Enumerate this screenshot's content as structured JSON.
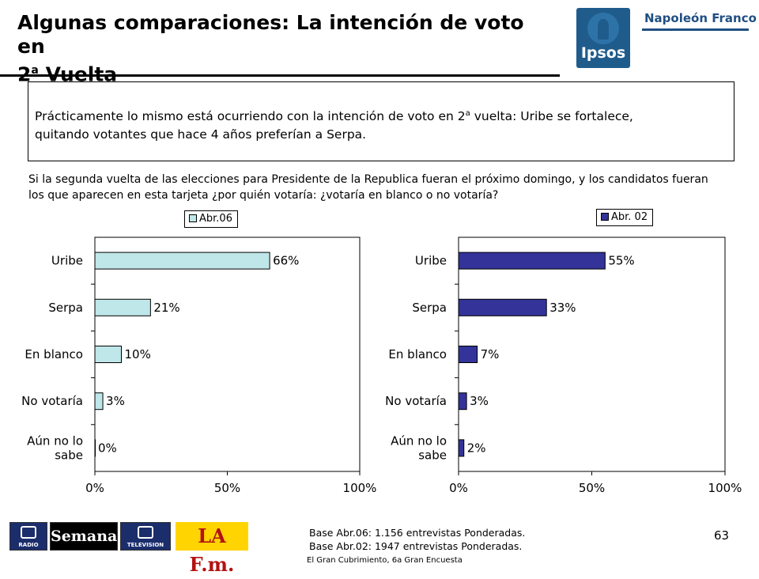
{
  "title": {
    "line1": "Algunas comparaciones: La intención de voto en",
    "line2_prefix": "2",
    "line2_sup": "a",
    "line2_suffix": " Vuelta"
  },
  "logos": {
    "ipsos": "Ipsos",
    "napoleon": "Napoleón Franco",
    "rcn_radio": "RADIO",
    "semana": "Semana",
    "rcn_tv": "TELEVISION",
    "lafm": "LA F.m."
  },
  "callout": {
    "line1_a": "Prácticamente lo mismo está ocurriendo con la intención de voto en 2",
    "line1_sup": "a",
    "line1_b": " vuelta: Uribe se fortalece,",
    "line2": "quitando votantes que hace 4 años preferían a Serpa."
  },
  "question": "Si la segunda vuelta de las elecciones para Presidente de la Republica fueran el próximo domingo, y los candidatos fueran los que aparecen en esta tarjeta ¿por quién votaría: ¿votaría en blanco o no votaría?",
  "chart_data": [
    {
      "type": "bar",
      "orientation": "horizontal",
      "categories": [
        "Uribe",
        "Serpa",
        "En blanco",
        "No votaría",
        "Aún no lo sabe"
      ],
      "category_lines": [
        [
          "Uribe"
        ],
        [
          "Serpa"
        ],
        [
          "En blanco"
        ],
        [
          "No votaría"
        ],
        [
          "Aún no lo",
          "sabe"
        ]
      ],
      "series": [
        {
          "name": "Abr.06",
          "values": [
            66,
            21,
            10,
            3,
            0
          ],
          "color": "#bfe6e8"
        }
      ],
      "value_labels": [
        "66%",
        "21%",
        "10%",
        "3%",
        "0%"
      ],
      "xlim": [
        0,
        100
      ],
      "xticks": [
        "0%",
        "50%",
        "100%"
      ],
      "legend_position": "top"
    },
    {
      "type": "bar",
      "orientation": "horizontal",
      "categories": [
        "Uribe",
        "Serpa",
        "En blanco",
        "No votaría",
        "Aún no lo sabe"
      ],
      "category_lines": [
        [
          "Uribe"
        ],
        [
          "Serpa"
        ],
        [
          "En blanco"
        ],
        [
          "No votaría"
        ],
        [
          "Aún no lo",
          "sabe"
        ]
      ],
      "series": [
        {
          "name": "Abr. 02",
          "values": [
            55,
            33,
            7,
            3,
            2
          ],
          "color": "#33339a"
        }
      ],
      "value_labels": [
        "55%",
        "33%",
        "7%",
        "3%",
        "2%"
      ],
      "xlim": [
        0,
        100
      ],
      "xticks": [
        "0%",
        "50%",
        "100%"
      ],
      "legend_position": "top"
    }
  ],
  "footer": {
    "base_line1": "Base Abr.06: 1.156 entrevistas Ponderadas.",
    "base_line2": "Base Abr.02: 1947 entrevistas Ponderadas.",
    "page_number": "63",
    "sub": "El Gran Cubrimiento, 6a Gran Encuesta"
  }
}
